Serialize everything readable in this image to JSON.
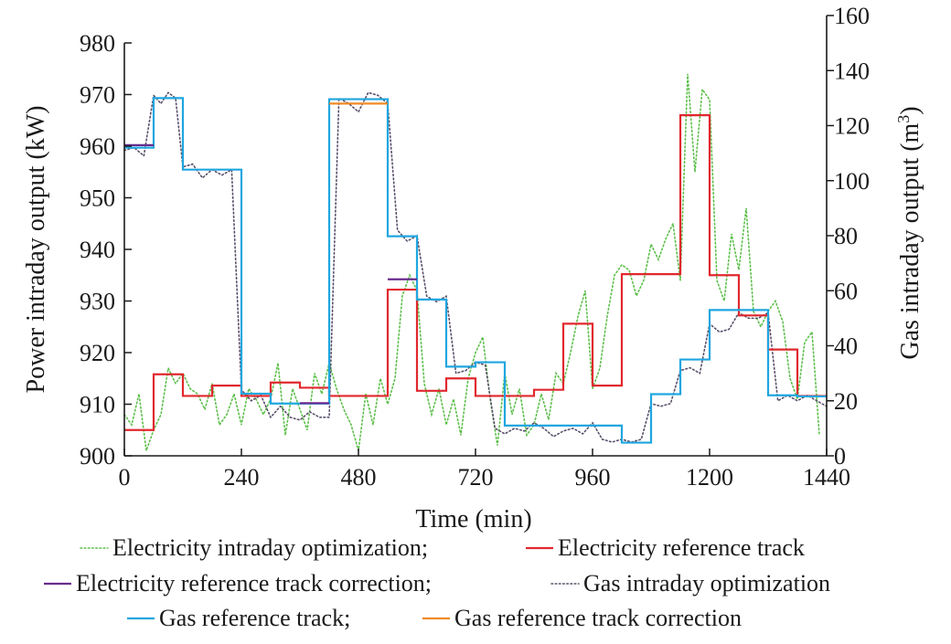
{
  "chart_data": {
    "type": "line",
    "xlabel": "Time (min)",
    "ylabel_left": "Power intraday output (kW)",
    "ylabel_right_prefix": "Gas intraday output (m",
    "ylabel_right_sup": "3",
    "ylabel_right_suffix": ")",
    "xlim": [
      0,
      1440
    ],
    "ylim_left": [
      900,
      980
    ],
    "ylim_right": [
      0,
      160
    ],
    "xticks": [
      0,
      240,
      480,
      720,
      960,
      1200,
      1440
    ],
    "yticks_left": [
      900,
      910,
      920,
      930,
      940,
      950,
      960,
      970,
      980
    ],
    "yticks_right": [
      0,
      20,
      40,
      60,
      80,
      100,
      120,
      140,
      160
    ],
    "grid": false,
    "legend_position": "bottom",
    "legend_rows": [
      [
        {
          "series": 0,
          "label": "Electricity intraday optimization;"
        },
        {
          "series": 1,
          "label": "Electricity reference track"
        }
      ],
      [
        {
          "series": 2,
          "label": "Electricity reference track correction;"
        },
        {
          "series": 3,
          "label": "Gas intraday optimization"
        }
      ],
      [
        {
          "series": 4,
          "label": "Gas reference track;"
        },
        {
          "series": 5,
          "label": "Gas reference track correction"
        }
      ]
    ],
    "series": [
      {
        "name": "Electricity intraday optimization",
        "axis": "left",
        "style": "dotted",
        "color": "#5cbf4a",
        "x": [
          0,
          15,
          30,
          45,
          60,
          75,
          90,
          105,
          120,
          135,
          150,
          165,
          180,
          195,
          210,
          225,
          240,
          255,
          270,
          285,
          300,
          315,
          330,
          345,
          360,
          375,
          390,
          405,
          420,
          435,
          450,
          465,
          480,
          495,
          510,
          525,
          540,
          555,
          570,
          585,
          600,
          615,
          630,
          645,
          660,
          675,
          690,
          705,
          720,
          735,
          750,
          765,
          780,
          795,
          810,
          825,
          840,
          855,
          870,
          885,
          900,
          915,
          930,
          945,
          960,
          975,
          990,
          1005,
          1020,
          1035,
          1050,
          1065,
          1080,
          1095,
          1110,
          1125,
          1140,
          1155,
          1170,
          1185,
          1200,
          1215,
          1230,
          1245,
          1260,
          1275,
          1290,
          1305,
          1320,
          1335,
          1350,
          1365,
          1380,
          1395,
          1410,
          1425
        ],
        "y": [
          908,
          906,
          912,
          901,
          905,
          908,
          917,
          914,
          916,
          913,
          912,
          909,
          914,
          906,
          908,
          912,
          906,
          913,
          911,
          908,
          911,
          918,
          904,
          913,
          909,
          905,
          916,
          912,
          918,
          913,
          909,
          906,
          901,
          912,
          906,
          915,
          910,
          915,
          931,
          935,
          932,
          914,
          908,
          913,
          906,
          911,
          904,
          915,
          920,
          923,
          911,
          902,
          916,
          908,
          913,
          904,
          906,
          912,
          907,
          916,
          914,
          920,
          927,
          932,
          913,
          917,
          927,
          935,
          937,
          936,
          931,
          934,
          941,
          938,
          942,
          945,
          934,
          974,
          955,
          971,
          969,
          934,
          930,
          943,
          936,
          948,
          928,
          925,
          928,
          930,
          926,
          915,
          911,
          922,
          924,
          904
        ]
      },
      {
        "name": "Electricity reference track",
        "axis": "left",
        "style": "step",
        "color": "#e0282e",
        "x": [
          0,
          60,
          120,
          180,
          240,
          300,
          360,
          420,
          540,
          600,
          660,
          720,
          840,
          900,
          960,
          1020,
          1140,
          1200,
          1260,
          1320,
          1380,
          1440
        ],
        "y": [
          905,
          915.8,
          911.6,
          913.6,
          911.6,
          914.2,
          913.2,
          911.6,
          932.2,
          912.6,
          915,
          911.6,
          912.8,
          925.6,
          913.6,
          935.2,
          966,
          935,
          927.2,
          920.6,
          911.6,
          911.6
        ]
      },
      {
        "name": "Electricity reference track correction",
        "axis": "left",
        "style": "segments",
        "color": "#6a2c8e",
        "segments": [
          [
            0,
            60,
            960.2
          ],
          [
            360,
            420,
            910.2
          ],
          [
            540,
            600,
            934.2
          ]
        ]
      },
      {
        "name": "Gas intraday optimization",
        "axis": "right",
        "style": "dotted",
        "color": "#5a4f6a",
        "x": [
          0,
          20,
          40,
          60,
          75,
          90,
          105,
          120,
          140,
          160,
          180,
          200,
          220,
          240,
          260,
          280,
          300,
          320,
          340,
          360,
          380,
          400,
          420,
          440,
          460,
          480,
          500,
          520,
          540,
          560,
          580,
          600,
          620,
          640,
          660,
          680,
          700,
          720,
          740,
          760,
          780,
          800,
          820,
          840,
          860,
          880,
          900,
          920,
          940,
          960,
          980,
          1000,
          1020,
          1040,
          1060,
          1080,
          1100,
          1120,
          1140,
          1160,
          1180,
          1200,
          1220,
          1240,
          1260,
          1280,
          1300,
          1320,
          1340,
          1360,
          1380,
          1400,
          1420,
          1440
        ],
        "y": [
          111,
          112,
          109,
          131,
          128,
          132,
          130,
          105,
          106,
          101,
          104,
          102,
          104,
          24,
          20,
          22,
          14,
          18,
          14,
          13,
          16,
          14,
          14,
          130,
          128,
          125,
          132,
          131,
          128,
          82,
          78,
          80,
          58,
          56,
          58,
          30,
          31,
          34,
          33,
          10,
          8,
          10,
          9,
          12,
          10,
          7,
          9,
          10,
          8,
          12,
          6,
          5,
          6,
          5,
          6,
          19,
          18,
          19,
          31,
          32,
          30,
          48,
          45,
          46,
          52,
          50,
          50,
          52,
          20,
          22,
          20,
          22,
          20,
          18
        ]
      },
      {
        "name": "Gas reference track",
        "axis": "right",
        "style": "step",
        "color": "#1fa6df",
        "x": [
          0,
          60,
          120,
          240,
          300,
          420,
          540,
          600,
          660,
          720,
          780,
          1020,
          1080,
          1140,
          1200,
          1320,
          1380,
          1440
        ],
        "y": [
          112,
          130,
          104,
          22.6,
          19,
          129.6,
          79.8,
          56.8,
          32.4,
          34,
          11,
          4.8,
          22.4,
          35,
          53,
          22,
          21.6,
          21.6
        ]
      },
      {
        "name": "Gas reference track correction",
        "axis": "right",
        "style": "segments",
        "color": "#f08a24",
        "segments": [
          [
            420,
            540,
            128
          ]
        ]
      }
    ]
  }
}
